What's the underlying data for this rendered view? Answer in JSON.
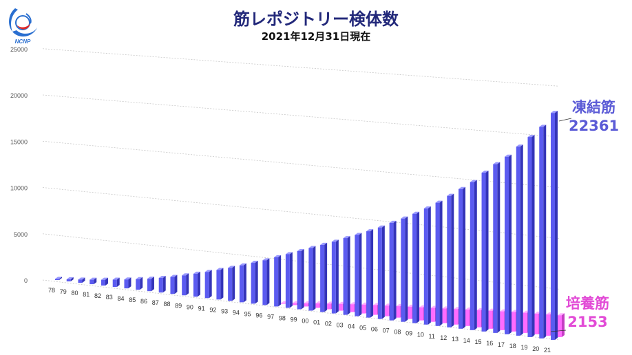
{
  "title": "筋レポジトリー検体数",
  "subtitle": "2021年12月31日現在",
  "logo": {
    "icon": "ncnp-logo-icon",
    "text": "NCNP"
  },
  "colors": {
    "frozen": "#5b5bf0",
    "frozen_top": "#9b9bff",
    "frozen_side": "#3434b8",
    "cultured": "#ff6bff",
    "cultured_top": "#ffb0ff",
    "cultured_side": "#c43ec4",
    "title": "#22287a"
  },
  "series_labels": {
    "frozen": {
      "name": "凍結筋",
      "total": "22361"
    },
    "cultured": {
      "name": "培養筋",
      "total": "2153"
    }
  },
  "chart_data": {
    "type": "bar",
    "title": "筋レポジトリー検体数",
    "subtitle": "2021年12月31日現在",
    "categories": [
      "78",
      "79",
      "80",
      "81",
      "82",
      "83",
      "84",
      "85",
      "86",
      "87",
      "88",
      "89",
      "90",
      "91",
      "92",
      "93",
      "94",
      "95",
      "96",
      "97",
      "98",
      "99",
      "00",
      "01",
      "02",
      "03",
      "04",
      "05",
      "06",
      "07",
      "08",
      "09",
      "10",
      "11",
      "12",
      "13",
      "14",
      "15",
      "16",
      "17",
      "18",
      "19",
      "20",
      "21"
    ],
    "yticks": [
      0,
      5000,
      10000,
      15000,
      20000,
      25000
    ],
    "ylim": [
      0,
      25000
    ],
    "series": [
      {
        "name": "凍結筋",
        "values": [
          120,
          230,
          350,
          480,
          620,
          780,
          950,
          1130,
          1320,
          1550,
          1800,
          2100,
          2420,
          2750,
          3100,
          3450,
          3850,
          4250,
          4650,
          5100,
          5550,
          6000,
          6450,
          6900,
          7350,
          7850,
          8300,
          8800,
          9300,
          9900,
          10450,
          11050,
          11700,
          12400,
          13200,
          14000,
          14800,
          15850,
          16800,
          17650,
          18750,
          19800,
          20900,
          22361
        ]
      },
      {
        "name": "培養筋",
        "values": [
          null,
          null,
          null,
          null,
          null,
          null,
          null,
          null,
          null,
          null,
          null,
          null,
          null,
          null,
          null,
          null,
          null,
          null,
          null,
          60,
          200,
          330,
          460,
          580,
          690,
          800,
          900,
          990,
          1080,
          1160,
          1240,
          1320,
          1400,
          1480,
          1560,
          1640,
          1720,
          1800,
          1870,
          1940,
          2000,
          2050,
          2100,
          2153
        ]
      }
    ],
    "grid": true,
    "legend": "right"
  }
}
